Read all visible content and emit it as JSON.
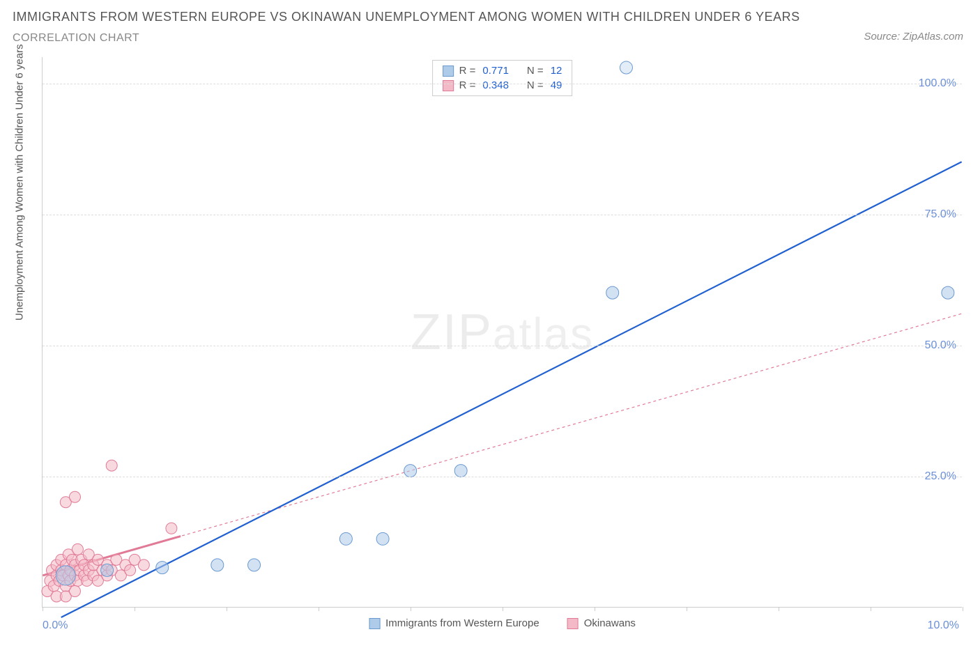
{
  "title": "IMMIGRANTS FROM WESTERN EUROPE VS OKINAWAN UNEMPLOYMENT AMONG WOMEN WITH CHILDREN UNDER 6 YEARS",
  "subtitle": "CORRELATION CHART",
  "source": "Source: ZipAtlas.com",
  "y_axis_label": "Unemployment Among Women with Children Under 6 years",
  "watermark_a": "ZIP",
  "watermark_b": "atlas",
  "chart": {
    "type": "scatter",
    "background_color": "#ffffff",
    "grid_color": "#dddddd",
    "axis_color": "#cccccc",
    "tick_label_color": "#6a8fd8",
    "xlim": [
      0,
      10
    ],
    "ylim": [
      0,
      105
    ],
    "x_ticks": [
      0,
      1,
      2,
      3,
      4,
      5,
      6,
      7,
      8,
      9,
      10
    ],
    "x_tick_labels": {
      "0": "0.0%",
      "10": "10.0%"
    },
    "y_ticks": [
      25,
      50,
      75,
      100
    ],
    "y_tick_labels": {
      "25": "25.0%",
      "50": "50.0%",
      "75": "75.0%",
      "100": "100.0%"
    },
    "series": [
      {
        "name": "Immigrants from Western Europe",
        "fill_color": "#aecbea",
        "stroke_color": "#6a99d0",
        "marker_radius": 9,
        "fill_opacity": 0.55,
        "trendline_color": "#2060d0",
        "trendline_width": 2.2,
        "trendline_dash": "none",
        "trendline": {
          "x1": 0.2,
          "y1": -2,
          "x2": 10.0,
          "y2": 85
        },
        "stats": {
          "R_label": "R =",
          "R": "0.771",
          "N_label": "N =",
          "N": "12"
        },
        "points": [
          {
            "x": 0.25,
            "y": 6,
            "r": 14
          },
          {
            "x": 0.7,
            "y": 7
          },
          {
            "x": 1.3,
            "y": 7.5
          },
          {
            "x": 1.9,
            "y": 8
          },
          {
            "x": 2.3,
            "y": 8
          },
          {
            "x": 3.3,
            "y": 13
          },
          {
            "x": 3.7,
            "y": 13
          },
          {
            "x": 4.0,
            "y": 26
          },
          {
            "x": 4.55,
            "y": 26
          },
          {
            "x": 6.2,
            "y": 60
          },
          {
            "x": 6.35,
            "y": 103,
            "opacity": 0.35
          },
          {
            "x": 9.85,
            "y": 60
          }
        ]
      },
      {
        "name": "Okinawans",
        "fill_color": "#f4b9c7",
        "stroke_color": "#e07a96",
        "marker_radius": 8,
        "fill_opacity": 0.55,
        "trendline_color": "#e07a96",
        "trendline_width": 1.2,
        "trendline_dash": "4,4",
        "trendline": {
          "x1": 0.0,
          "y1": 6,
          "x2": 10.0,
          "y2": 56
        },
        "solid_segment": {
          "x1": 0.0,
          "y1": 6,
          "x2": 1.5,
          "y2": 13.5,
          "width": 3
        },
        "stats": {
          "R_label": "R =",
          "R": "0.348",
          "N_label": "N =",
          "N": "49"
        },
        "points": [
          {
            "x": 0.05,
            "y": 3
          },
          {
            "x": 0.08,
            "y": 5
          },
          {
            "x": 0.1,
            "y": 7
          },
          {
            "x": 0.12,
            "y": 4
          },
          {
            "x": 0.15,
            "y": 6
          },
          {
            "x": 0.15,
            "y": 8
          },
          {
            "x": 0.18,
            "y": 5
          },
          {
            "x": 0.2,
            "y": 7
          },
          {
            "x": 0.2,
            "y": 9
          },
          {
            "x": 0.22,
            "y": 6
          },
          {
            "x": 0.25,
            "y": 4
          },
          {
            "x": 0.25,
            "y": 8
          },
          {
            "x": 0.28,
            "y": 6
          },
          {
            "x": 0.28,
            "y": 10
          },
          {
            "x": 0.3,
            "y": 5
          },
          {
            "x": 0.3,
            "y": 7
          },
          {
            "x": 0.32,
            "y": 9
          },
          {
            "x": 0.35,
            "y": 6
          },
          {
            "x": 0.35,
            "y": 8
          },
          {
            "x": 0.38,
            "y": 5
          },
          {
            "x": 0.38,
            "y": 11
          },
          {
            "x": 0.4,
            "y": 7
          },
          {
            "x": 0.42,
            "y": 9
          },
          {
            "x": 0.45,
            "y": 6
          },
          {
            "x": 0.45,
            "y": 8
          },
          {
            "x": 0.48,
            "y": 5
          },
          {
            "x": 0.5,
            "y": 7
          },
          {
            "x": 0.5,
            "y": 10
          },
          {
            "x": 0.55,
            "y": 6
          },
          {
            "x": 0.55,
            "y": 8
          },
          {
            "x": 0.6,
            "y": 5
          },
          {
            "x": 0.6,
            "y": 9
          },
          {
            "x": 0.65,
            "y": 7
          },
          {
            "x": 0.7,
            "y": 6
          },
          {
            "x": 0.7,
            "y": 8
          },
          {
            "x": 0.75,
            "y": 7
          },
          {
            "x": 0.8,
            "y": 9
          },
          {
            "x": 0.85,
            "y": 6
          },
          {
            "x": 0.9,
            "y": 8
          },
          {
            "x": 0.95,
            "y": 7
          },
          {
            "x": 1.0,
            "y": 9
          },
          {
            "x": 1.1,
            "y": 8
          },
          {
            "x": 1.4,
            "y": 15
          },
          {
            "x": 0.15,
            "y": 2
          },
          {
            "x": 0.25,
            "y": 2
          },
          {
            "x": 0.35,
            "y": 3
          },
          {
            "x": 0.25,
            "y": 20
          },
          {
            "x": 0.35,
            "y": 21
          },
          {
            "x": 0.75,
            "y": 27
          }
        ]
      }
    ],
    "bottom_legend": [
      {
        "label": "Immigrants from Western Europe",
        "fill": "#aecbea",
        "stroke": "#6a99d0"
      },
      {
        "label": "Okinawans",
        "fill": "#f4b9c7",
        "stroke": "#e07a96"
      }
    ]
  }
}
